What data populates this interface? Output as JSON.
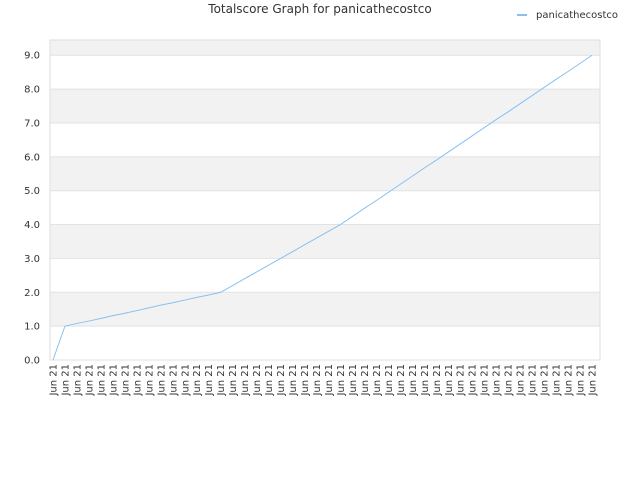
{
  "chart_data": {
    "type": "line",
    "title": "Totalscore Graph for panicathecostco",
    "categories": [
      "Jun 21",
      "Jun 21",
      "Jun 21",
      "Jun 21",
      "Jun 21",
      "Jun 21",
      "Jun 21",
      "Jun 21",
      "Jun 21",
      "Jun 21",
      "Jun 21",
      "Jun 21",
      "Jun 21",
      "Jun 21",
      "Jun 21",
      "Jun 21",
      "Jun 21",
      "Jun 21",
      "Jun 21",
      "Jun 21",
      "Jun 21",
      "Jun 21",
      "Jun 21",
      "Jun 21",
      "Jun 21",
      "Jun 21",
      "Jun 21",
      "Jun 21",
      "Jun 21",
      "Jun 21",
      "Jun 21",
      "Jun 21",
      "Jun 21",
      "Jun 21",
      "Jun 21",
      "Jun 21",
      "Jun 21",
      "Jun 21",
      "Jun 21",
      "Jun 21",
      "Jun 21",
      "Jun 21",
      "Jun 21",
      "Jun 21",
      "Jun 21",
      "Jun 21"
    ],
    "series": [
      {
        "name": "panicathecostco",
        "color": "#88c0f0",
        "values": [
          0,
          1,
          1.08,
          1.15,
          1.23,
          1.31,
          1.38,
          1.46,
          1.54,
          1.62,
          1.69,
          1.77,
          1.85,
          1.92,
          2.0,
          2.2,
          2.4,
          2.6,
          2.8,
          3.0,
          3.2,
          3.4,
          3.6,
          3.8,
          4.0,
          4.24,
          4.48,
          4.71,
          4.95,
          5.19,
          5.43,
          5.67,
          5.9,
          6.14,
          6.38,
          6.62,
          6.86,
          7.1,
          7.33,
          7.57,
          7.81,
          8.05,
          8.29,
          8.52,
          8.76,
          9.0
        ]
      }
    ],
    "ylim": [
      0,
      9.45
    ],
    "yticks": [
      {
        "value": 0,
        "label": "0.0"
      },
      {
        "value": 1,
        "label": "1.0"
      },
      {
        "value": 2,
        "label": "2.0"
      },
      {
        "value": 3,
        "label": "3.0"
      },
      {
        "value": 4,
        "label": "4.0"
      },
      {
        "value": 5,
        "label": "5.0"
      },
      {
        "value": 6,
        "label": "6.0"
      },
      {
        "value": 7,
        "label": "7.0"
      },
      {
        "value": 8,
        "label": "8.0"
      },
      {
        "value": 9,
        "label": "9.0"
      }
    ],
    "grid": true,
    "legend": "top-right"
  }
}
